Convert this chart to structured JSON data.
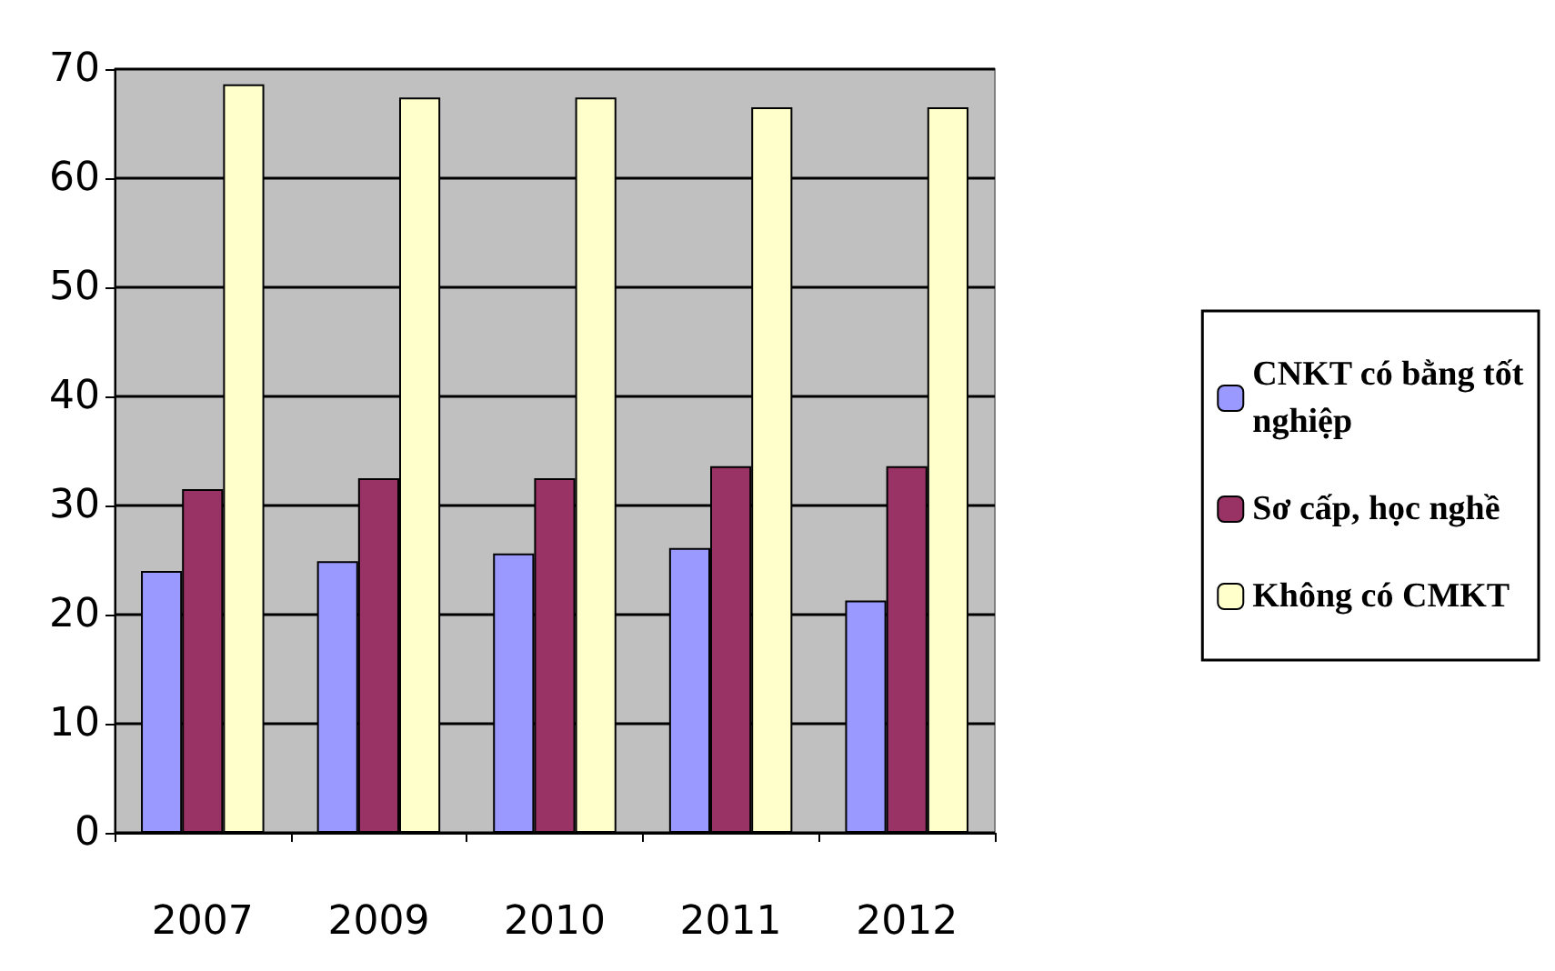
{
  "chart_data": {
    "type": "bar",
    "categories": [
      "2007",
      "2009",
      "2010",
      "2011",
      "2012"
    ],
    "series": [
      {
        "name": "CNKT có bằng tốt nghiệp",
        "color": "#9999ff",
        "values": [
          24,
          24.9,
          25.6,
          26.1,
          21.3
        ]
      },
      {
        "name": "Sơ cấp, học nghề",
        "color": "#993366",
        "values": [
          31.5,
          32.5,
          32.5,
          33.6,
          33.6
        ]
      },
      {
        "name": "Không có CMKT",
        "color": "#ffffcc",
        "values": [
          68.6,
          67.4,
          67.4,
          66.5,
          66.5
        ]
      }
    ],
    "ylim": [
      0,
      70
    ],
    "yticks": [
      0,
      10,
      20,
      30,
      40,
      50,
      60,
      70
    ],
    "grid": "y",
    "legend": "right"
  }
}
